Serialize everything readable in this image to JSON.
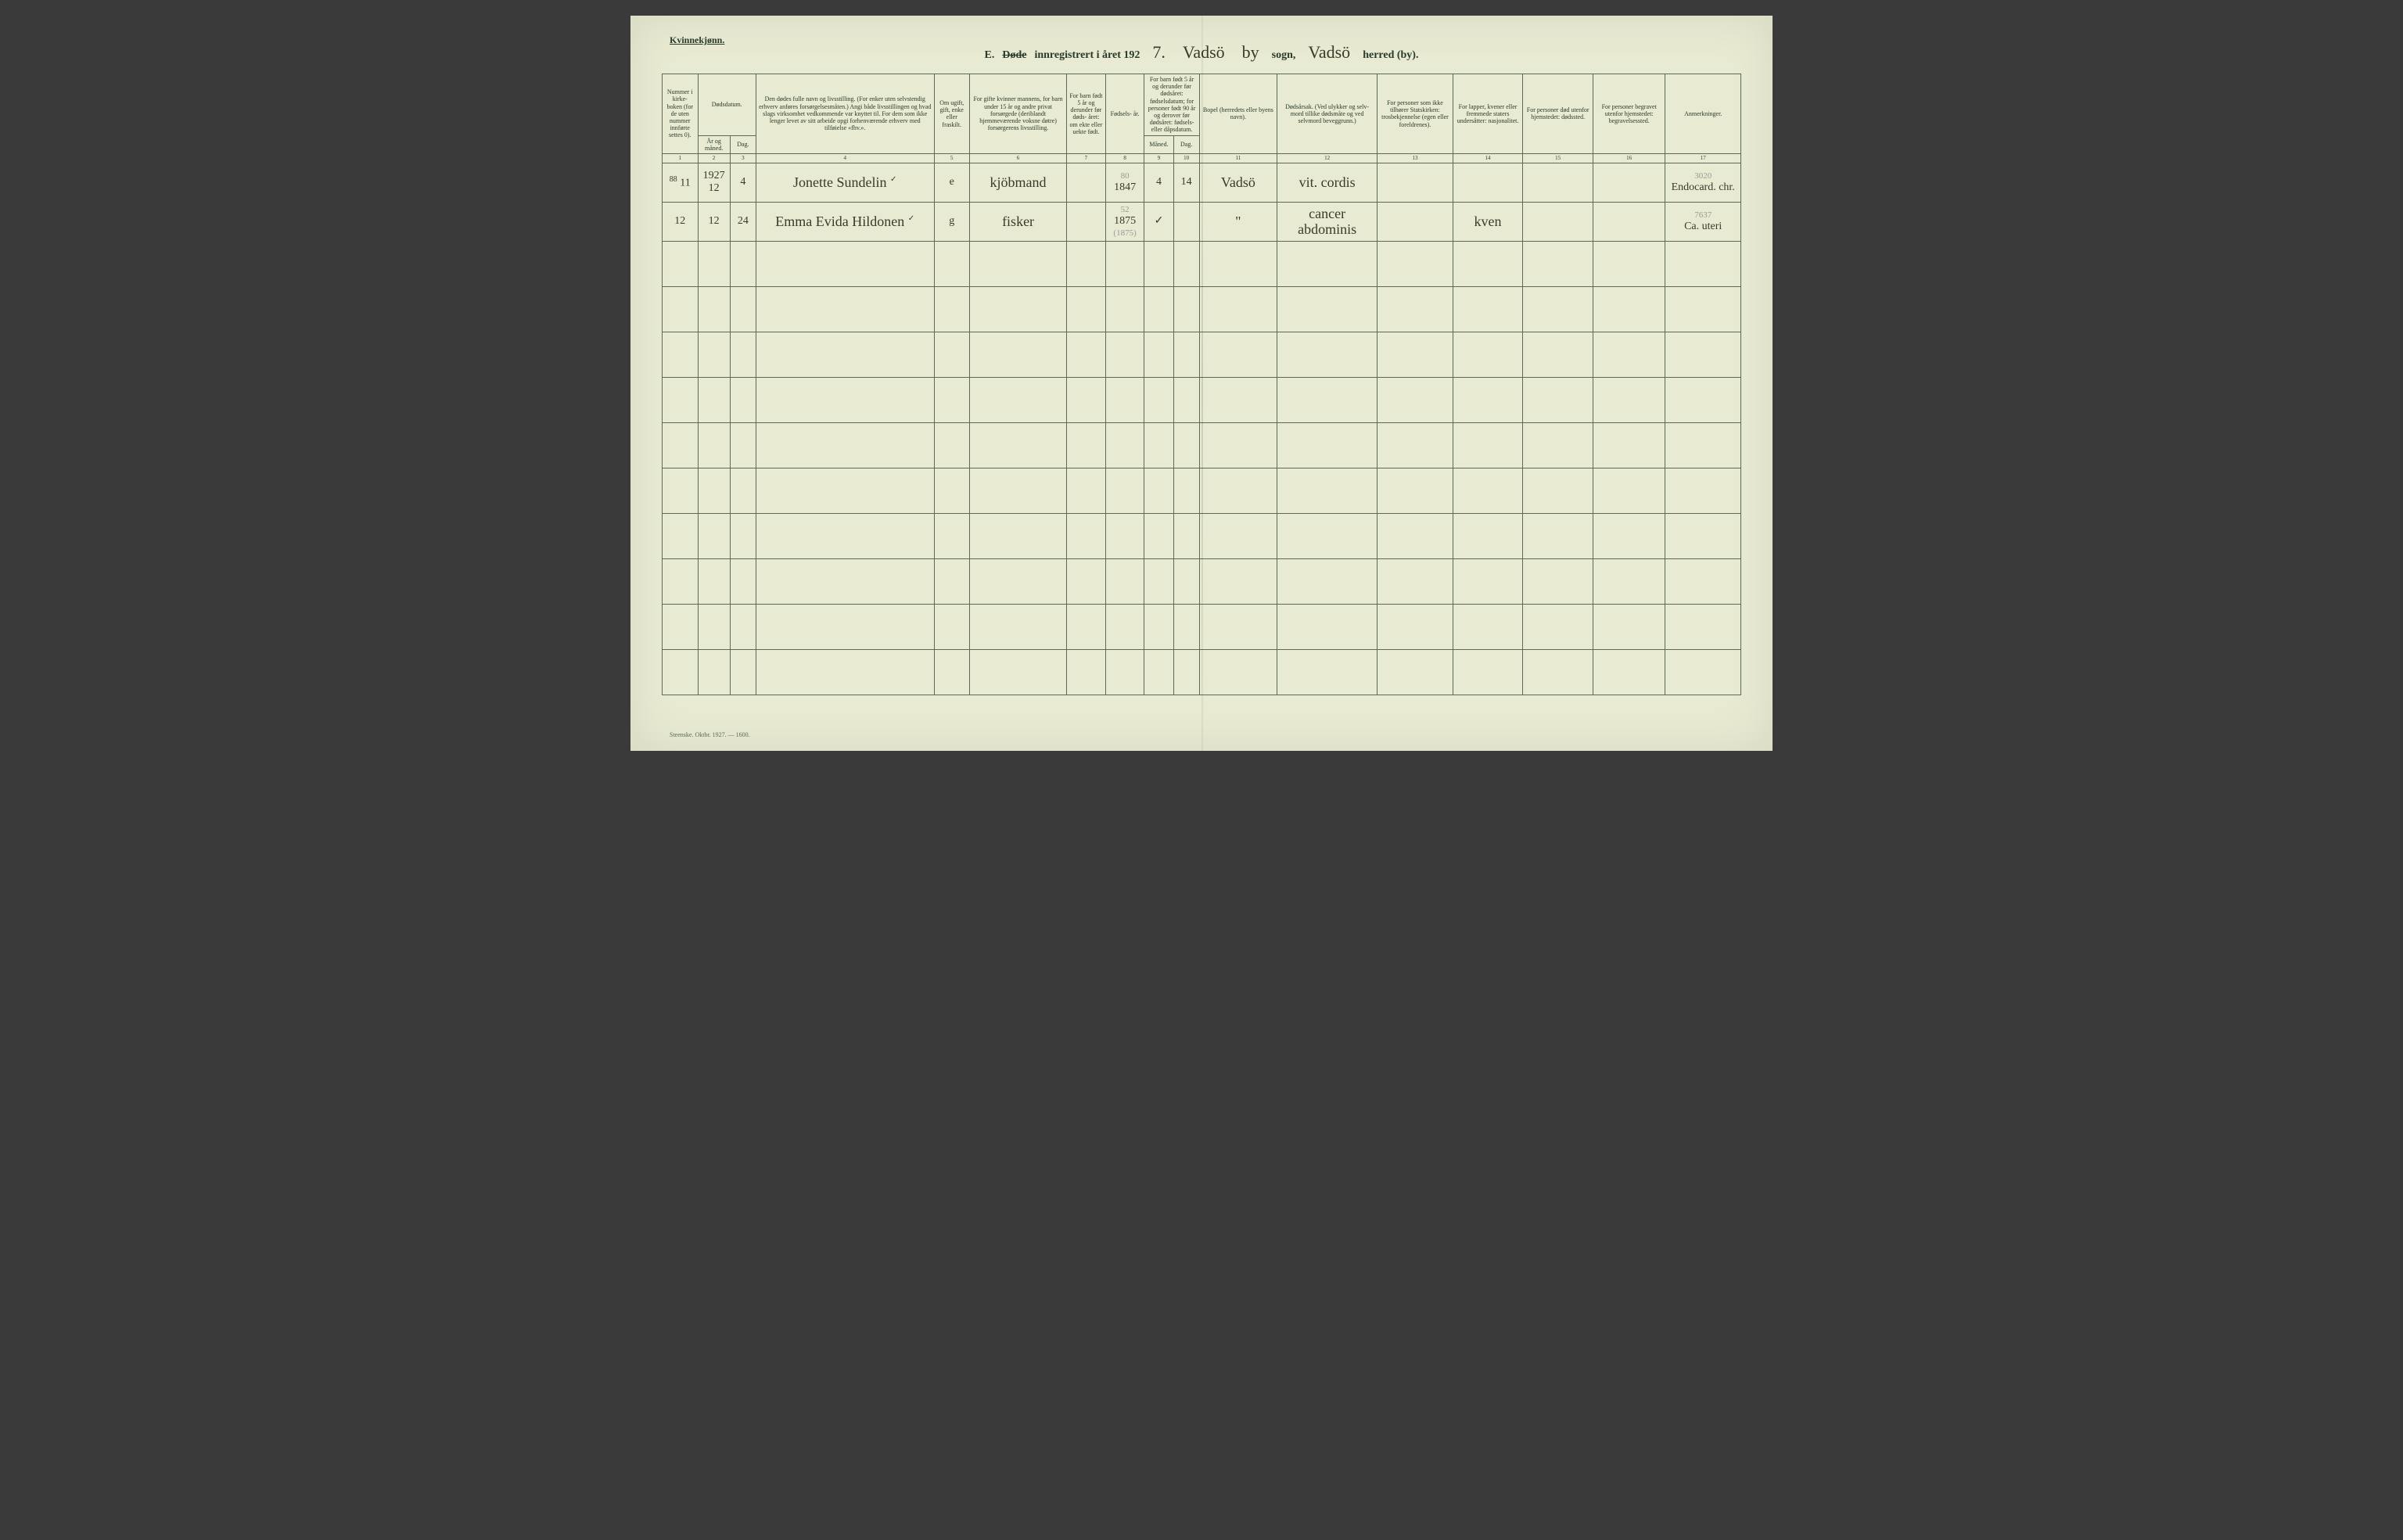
{
  "header": {
    "gender_label": "Kvinnekjønn.",
    "prefix": "E.",
    "word_dode": "Døde",
    "innreg": "innregistrert i året 192",
    "year_suffix": "7.",
    "field1": "Vadsö",
    "sogn_label_hw": "by",
    "sogn_label": "sogn,",
    "field2": "Vadsö",
    "herred_label": "herred (by)."
  },
  "columns": {
    "c1": "Nummer i kirke-\nboken\n(for de uten nummer innførte settes 0).",
    "c2_top": "Dødsdatum.",
    "c2a": "År\nog\nmåned.",
    "c2b": "Dag.",
    "c4": "Den dødes fulle navn og livsstilling.\n(For enker uten selvstendig erhverv anføres forsørgelsesmåten.)\nAngi både livsstillingen og hvad slags virksomhet vedkommende var knyttet til.\nFor dem som ikke lenger levet av sitt arbeide opgi forhenværende erhverv med tilføielse «fhv.».",
    "c5": "Om\nugift,\ngift,\nenke\neller\nfraskilt.",
    "c6": "For gifte kvinner\nmannens,\nfor barn under 15 år\nog andre privat forsørgede\n(deriblandt hjemmeværende\nvoksne døtre)\nforsørgerens livsstilling.",
    "c7": "For barn født 5 år og derunder før døds-\nåret:\nom ekte eller uekte født.",
    "c8": "Fødsels-\når.",
    "c9_top": "For barn født 5 år og derunder før dødsåret:\nfødselsdatum;\nfor personer født 90 år og derover før dødsåret:\nfødsels- eller dåpsdatum.",
    "c9a": "Måned.",
    "c9b": "Dag.",
    "c11": "Bopel\n(herredets eller byens navn).",
    "c12": "Dødsårsak.\n(Ved ulykker og selv-\nmord tillike dødsmåte og ved selvmord beveggrunn.)",
    "c13": "For personer som ikke tilhører Statskirken:\ntrosbekjennelse\n(egen eller foreldrenes).",
    "c14": "For lapper, kvener eller fremmede staters undersåtter:\nnasjonalitet.",
    "c15": "For personer død utenfor hjemstedet:\ndødssted.",
    "c16": "For personer begravet utenfor hjemstedet:\nbegravelsessted.",
    "c17": "Anmerkninger."
  },
  "colnums": [
    "1",
    "2",
    "3",
    "4",
    "5",
    "6",
    "7",
    "8",
    "9",
    "10",
    "11",
    "12",
    "13",
    "14",
    "15",
    "16",
    "17"
  ],
  "rows": [
    {
      "num": "11",
      "num_pencil": "88",
      "year_month": "1927\n12",
      "day": "4",
      "name": "Jonette Sundelin",
      "check": "✓",
      "status": "e",
      "provider": "kjöbmand",
      "ekte": "",
      "birthyear_pencil": "80",
      "birthyear": "1847",
      "bmonth": "4",
      "bday": "14",
      "residence": "Vadsö",
      "cause": "vit. cordis",
      "c13": "",
      "c14": "",
      "c15": "",
      "c16": "",
      "notes_top": "3020",
      "notes": "Endocard. chr."
    },
    {
      "num": "12",
      "num_pencil": "",
      "year_month": "12",
      "day": "24",
      "name": "Emma Evida Hildonen",
      "check": "✓",
      "status": "g",
      "provider": "fisker",
      "ekte": "",
      "birthyear_pencil": "52",
      "birthyear": "1875",
      "birthyear_sub": "(1875)",
      "bmonth": "✓",
      "bday": "",
      "residence": "\"",
      "cause": "cancer abdominis",
      "c13": "",
      "c14": "kven",
      "c15": "",
      "c16": "",
      "notes_top": "7637",
      "notes": "Ca. uteri"
    }
  ],
  "footer": "Steenske. Oktbr. 1927. — 1600.",
  "layout": {
    "empty_rows": 10,
    "col_widths_pct": [
      3.3,
      3.0,
      2.4,
      16.5,
      3.3,
      9.0,
      3.6,
      3.6,
      2.7,
      2.4,
      7.2,
      9.3,
      7.0,
      6.5,
      6.5,
      6.7,
      7.0
    ]
  },
  "colors": {
    "paper": "#e8ead2",
    "ink": "#2a3a2a",
    "rule": "#5a6a55",
    "handwriting": "#3a3a2a"
  }
}
